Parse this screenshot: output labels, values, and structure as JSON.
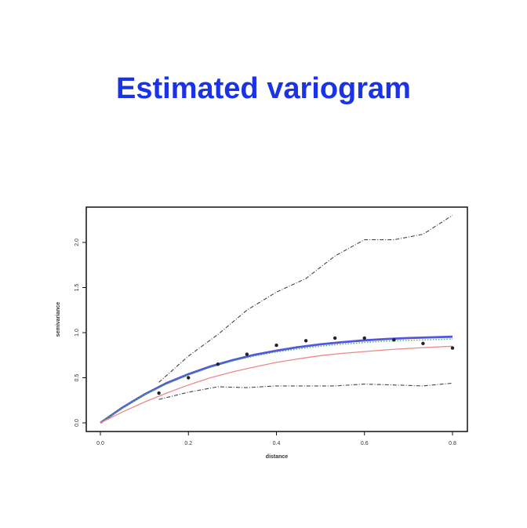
{
  "title": "Estimated variogram",
  "chart_data": {
    "type": "line",
    "xlabel": "distance",
    "ylabel": "semivariance",
    "xlim": [
      0,
      0.8
    ],
    "ylim": [
      0,
      2.3
    ],
    "x_ticks": [
      0.0,
      0.2,
      0.4,
      0.6,
      0.8
    ],
    "x_tick_labels": [
      "0.0",
      "0.2",
      "0.4",
      "0.6",
      "0.8"
    ],
    "y_ticks": [
      0.0,
      0.5,
      1.0,
      1.5,
      2.0
    ],
    "y_tick_labels": [
      "0.0",
      "0.5",
      "1.0",
      "1.5",
      "2.0"
    ],
    "grid": false,
    "points": {
      "x": [
        0.133,
        0.2,
        0.267,
        0.333,
        0.4,
        0.467,
        0.533,
        0.6,
        0.667,
        0.733,
        0.8
      ],
      "y": [
        0.33,
        0.5,
        0.65,
        0.76,
        0.86,
        0.91,
        0.94,
        0.94,
        0.92,
        0.88,
        0.83
      ]
    },
    "series": [
      {
        "color": "#5555dd",
        "style": "thick",
        "x": [
          0.0,
          0.05,
          0.1,
          0.15,
          0.2,
          0.25,
          0.3,
          0.35,
          0.4,
          0.45,
          0.5,
          0.55,
          0.6,
          0.65,
          0.7,
          0.75,
          0.8
        ],
        "y": [
          0.0,
          0.17,
          0.315,
          0.44,
          0.54,
          0.625,
          0.695,
          0.755,
          0.8,
          0.84,
          0.87,
          0.895,
          0.915,
          0.93,
          0.94,
          0.948,
          0.955
        ]
      },
      {
        "color": "#44bb44",
        "style": "dotted",
        "x": [
          0.0,
          0.05,
          0.1,
          0.15,
          0.2,
          0.25,
          0.3,
          0.35,
          0.4,
          0.45,
          0.5,
          0.55,
          0.6,
          0.65,
          0.7,
          0.75,
          0.8
        ],
        "y": [
          0.0,
          0.165,
          0.31,
          0.43,
          0.53,
          0.615,
          0.685,
          0.74,
          0.785,
          0.82,
          0.85,
          0.872,
          0.89,
          0.905,
          0.915,
          0.922,
          0.93
        ]
      },
      {
        "color": "#ee8888",
        "style": "solid",
        "x": [
          0.0,
          0.05,
          0.1,
          0.15,
          0.2,
          0.25,
          0.3,
          0.35,
          0.4,
          0.45,
          0.5,
          0.55,
          0.6,
          0.65,
          0.7,
          0.75,
          0.8
        ],
        "y": [
          0.0,
          0.12,
          0.23,
          0.33,
          0.42,
          0.5,
          0.565,
          0.62,
          0.67,
          0.71,
          0.745,
          0.77,
          0.79,
          0.81,
          0.825,
          0.838,
          0.85
        ]
      },
      {
        "color": "#444444",
        "style": "dashed",
        "x": [
          0.133,
          0.2,
          0.267,
          0.333,
          0.4,
          0.467,
          0.533,
          0.6,
          0.667,
          0.733,
          0.8
        ],
        "y": [
          0.45,
          0.74,
          0.98,
          1.25,
          1.45,
          1.6,
          1.85,
          2.03,
          2.03,
          2.09,
          2.3
        ]
      },
      {
        "color": "#444444",
        "style": "dashed",
        "x": [
          0.133,
          0.2,
          0.267,
          0.333,
          0.4,
          0.467,
          0.533,
          0.6,
          0.667,
          0.733,
          0.8
        ],
        "y": [
          0.26,
          0.34,
          0.4,
          0.39,
          0.41,
          0.41,
          0.41,
          0.43,
          0.42,
          0.41,
          0.44
        ]
      }
    ]
  }
}
